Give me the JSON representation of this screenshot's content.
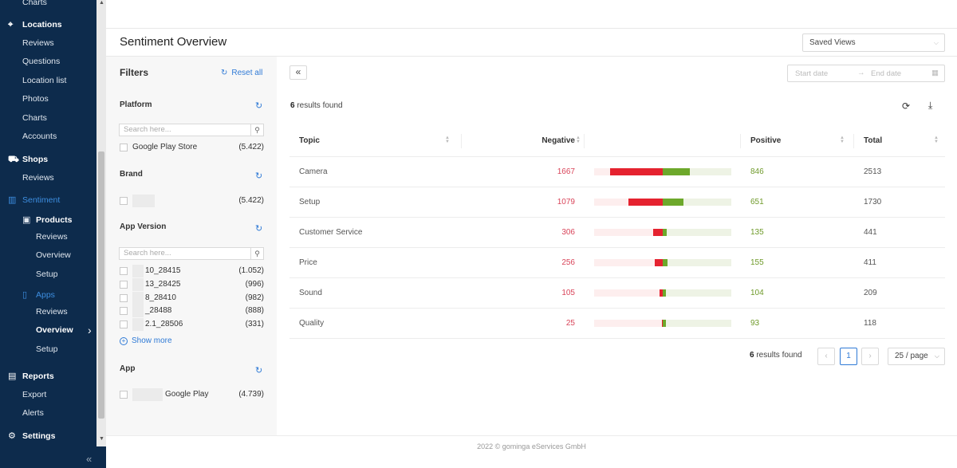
{
  "sidebar": {
    "items": [
      {
        "label": "Charts",
        "kind": "sub",
        "icon": ""
      },
      {
        "label": "Locations",
        "kind": "group",
        "icon": "map-pin-icon"
      },
      {
        "label": "Reviews",
        "kind": "sub"
      },
      {
        "label": "Questions",
        "kind": "sub"
      },
      {
        "label": "Location list",
        "kind": "sub"
      },
      {
        "label": "Photos",
        "kind": "sub"
      },
      {
        "label": "Charts",
        "kind": "sub"
      },
      {
        "label": "Accounts",
        "kind": "sub"
      },
      {
        "label": "Shops",
        "kind": "group",
        "icon": "cart-icon"
      },
      {
        "label": "Reviews",
        "kind": "sub"
      },
      {
        "label": "Sentiment",
        "kind": "group",
        "icon": "chart-icon"
      },
      {
        "label": "Products",
        "kind": "subgroup",
        "icon": "box-icon"
      },
      {
        "label": "Reviews",
        "kind": "subsub"
      },
      {
        "label": "Overview",
        "kind": "subsub"
      },
      {
        "label": "Setup",
        "kind": "subsub"
      },
      {
        "label": "Apps",
        "kind": "subgroup",
        "icon": "phone-icon"
      },
      {
        "label": "Reviews",
        "kind": "subsub"
      },
      {
        "label": "Overview",
        "kind": "subsub"
      },
      {
        "label": "Setup",
        "kind": "subsub"
      },
      {
        "label": "Reports",
        "kind": "group",
        "icon": "report-icon"
      },
      {
        "label": "Export",
        "kind": "sub"
      },
      {
        "label": "Alerts",
        "kind": "sub"
      },
      {
        "label": "Settings",
        "kind": "group",
        "icon": "gear-icon"
      }
    ],
    "collapse_glyph": "«"
  },
  "header": {
    "title": "Sentiment Overview",
    "saved_views": "Saved Views"
  },
  "filters": {
    "title": "Filters",
    "reset_label": "Reset all",
    "platform": {
      "title": "Platform",
      "search_placeholder": "Search here...",
      "options": [
        {
          "name": "Google Play Store",
          "count": "(5.422)"
        }
      ]
    },
    "brand": {
      "title": "Brand",
      "options": [
        {
          "name": "",
          "count": "(5.422)"
        }
      ]
    },
    "app_version": {
      "title": "App Version",
      "search_placeholder": "Search here...",
      "options": [
        {
          "name": "10_28415",
          "count": "(1.052)"
        },
        {
          "name": "13_28425",
          "count": "(996)"
        },
        {
          "name": "8_28410",
          "count": "(982)"
        },
        {
          "name": "_28488",
          "count": "(888)"
        },
        {
          "name": "2.1_28506",
          "count": "(331)"
        }
      ],
      "show_more": "Show more"
    },
    "app": {
      "title": "App",
      "options": [
        {
          "name": "Google Play",
          "count": "(4.739)"
        }
      ]
    }
  },
  "main": {
    "collapse_glyph": "«",
    "date_start_placeholder": "Start date",
    "date_end_placeholder": "End date",
    "results_count": "6",
    "results_label": "results found",
    "columns": {
      "topic": "Topic",
      "negative": "Negative",
      "positive": "Positive",
      "total": "Total"
    },
    "rows": [
      {
        "topic": "Camera",
        "negative": "1667",
        "positive": "846",
        "total": "2513",
        "neg_frac": 0.663,
        "pos_frac": 0.337
      },
      {
        "topic": "Setup",
        "negative": "1079",
        "positive": "651",
        "total": "1730",
        "neg_frac": 0.624,
        "pos_frac": 0.376
      },
      {
        "topic": "Customer Service",
        "negative": "306",
        "positive": "135",
        "total": "441",
        "neg_frac": 0.694,
        "pos_frac": 0.306
      },
      {
        "topic": "Price",
        "negative": "256",
        "positive": "155",
        "total": "411",
        "neg_frac": 0.623,
        "pos_frac": 0.377
      },
      {
        "topic": "Sound",
        "negative": "105",
        "positive": "104",
        "total": "209",
        "neg_frac": 0.502,
        "pos_frac": 0.498
      },
      {
        "topic": "Quality",
        "negative": "25",
        "positive": "93",
        "total": "118",
        "neg_frac": 0.212,
        "pos_frac": 0.788
      }
    ],
    "pagination": {
      "results_count": "6",
      "results_label": "results found",
      "prev": "‹",
      "current": "1",
      "next": "›",
      "page_size": "25 / page"
    }
  },
  "footer": {
    "text": "2022 © gominga eServices GmbH"
  },
  "colors": {
    "sidebar_bg": "#0d2b4c",
    "accent": "#2f7ad6",
    "negative": "#e5222f",
    "positive": "#6da82b"
  }
}
